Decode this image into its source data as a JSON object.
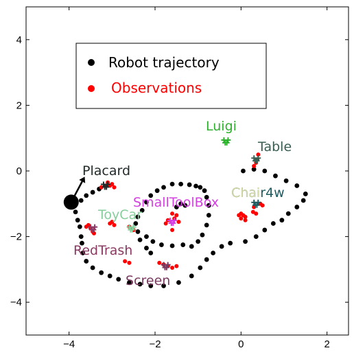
{
  "chart_data": {
    "type": "scatter",
    "title": "",
    "xlabel": "",
    "ylabel": "",
    "xlim": [
      -5,
      2.5
    ],
    "ylim": [
      -5,
      5
    ],
    "grid": false,
    "legend_location": "upper-left",
    "x_ticks": [
      -4,
      -2,
      0,
      2
    ],
    "y_ticks": [
      -4,
      -2,
      0,
      2,
      4
    ],
    "x_tick_labels": [
      "−4",
      "−2",
      "0",
      "2"
    ],
    "y_tick_labels": [
      "−4",
      "−2",
      "0",
      "2",
      "4"
    ],
    "legend": [
      {
        "label": "Robot trajectory",
        "color": "#000000"
      },
      {
        "label": "Observations",
        "color": "#ff0000"
      }
    ],
    "robot_pose": {
      "x": -3.95,
      "y": -0.95,
      "heading_deg": 62,
      "color": "#000000"
    },
    "series": [
      {
        "name": "Robot trajectory",
        "color": "#000000",
        "points": [
          [
            -3.9,
            -1.0
          ],
          [
            -3.85,
            -1.25
          ],
          [
            -3.8,
            -1.5
          ],
          [
            -3.75,
            -1.7
          ],
          [
            -3.72,
            -2.0
          ],
          [
            -3.7,
            -2.2
          ],
          [
            -3.68,
            -2.5
          ],
          [
            -3.6,
            -2.75
          ],
          [
            -3.45,
            -2.95
          ],
          [
            -3.25,
            -3.1
          ],
          [
            -3.05,
            -3.2
          ],
          [
            -2.85,
            -3.3
          ],
          [
            -2.6,
            -3.4
          ],
          [
            -2.35,
            -3.45
          ],
          [
            -2.1,
            -3.5
          ],
          [
            -1.8,
            -3.5
          ],
          [
            -1.45,
            -3.4
          ],
          [
            -1.15,
            -3.2
          ],
          [
            -0.95,
            -2.95
          ],
          [
            -0.8,
            -2.7
          ],
          [
            -0.65,
            -2.5
          ],
          [
            -0.45,
            -2.3
          ],
          [
            -0.25,
            -2.2
          ],
          [
            0.1,
            -2.15
          ],
          [
            0.35,
            -2.0
          ],
          [
            0.55,
            -1.8
          ],
          [
            0.75,
            -1.6
          ],
          [
            0.95,
            -1.5
          ],
          [
            1.1,
            -1.3
          ],
          [
            1.3,
            -1.1
          ],
          [
            1.45,
            -0.9
          ],
          [
            1.5,
            -0.7
          ],
          [
            1.3,
            -0.45
          ],
          [
            1.05,
            -0.3
          ],
          [
            0.8,
            -0.15
          ],
          [
            0.55,
            0.0
          ],
          [
            0.3,
            0.05
          ],
          [
            0.05,
            0.0
          ],
          [
            -3.72,
            -0.9
          ],
          [
            -3.6,
            -0.75
          ],
          [
            -3.45,
            -0.65
          ],
          [
            -3.3,
            -0.55
          ],
          [
            -2.1,
            -2.5
          ],
          [
            -2.2,
            -2.35
          ],
          [
            -2.35,
            -2.1
          ],
          [
            -2.4,
            -1.85
          ],
          [
            -2.45,
            -1.6
          ],
          [
            -2.4,
            -1.4
          ],
          [
            -2.3,
            -1.2
          ],
          [
            -2.2,
            -0.95
          ],
          [
            -2.1,
            -0.75
          ],
          [
            -1.95,
            -0.6
          ],
          [
            -1.8,
            -0.5
          ],
          [
            -1.6,
            -0.4
          ],
          [
            -1.4,
            -0.4
          ],
          [
            -1.2,
            -0.42
          ],
          [
            -1.05,
            -0.46
          ],
          [
            -0.95,
            -0.5
          ],
          [
            -0.85,
            -0.6
          ],
          [
            -0.8,
            -0.8
          ],
          [
            -0.75,
            -1.05
          ],
          [
            -0.75,
            -1.35
          ],
          [
            -0.8,
            -1.65
          ],
          [
            -0.9,
            -1.95
          ],
          [
            -1.0,
            -2.15
          ],
          [
            -1.15,
            -2.3
          ],
          [
            -2.2,
            -2.0
          ],
          [
            -2.05,
            -2.15
          ],
          [
            -1.85,
            -2.25
          ],
          [
            -1.6,
            -2.28
          ],
          [
            -1.35,
            -2.25
          ],
          [
            -1.3,
            -1.05
          ],
          [
            -1.4,
            -1.0
          ],
          [
            -1.5,
            -1.1
          ]
        ]
      },
      {
        "name": "Observations",
        "color": "#ff0000",
        "points": [
          [
            -3.1,
            -0.35
          ],
          [
            -3.15,
            -0.45
          ],
          [
            -3.25,
            -0.5
          ],
          [
            -3.05,
            -0.45
          ],
          [
            -3.0,
            -0.4
          ],
          [
            -2.95,
            -0.5
          ],
          [
            -3.55,
            -1.65
          ],
          [
            -3.5,
            -1.75
          ],
          [
            -3.45,
            -1.85
          ],
          [
            -3.6,
            -1.7
          ],
          [
            -3.42,
            -1.9
          ],
          [
            -2.55,
            -1.75
          ],
          [
            -2.5,
            -1.8
          ],
          [
            -2.6,
            -1.7
          ],
          [
            -3.0,
            -1.55
          ],
          [
            -3.05,
            -1.6
          ],
          [
            -2.95,
            -1.65
          ],
          [
            -2.7,
            -2.75
          ],
          [
            -2.6,
            -2.8
          ],
          [
            -1.9,
            -2.8
          ],
          [
            -1.8,
            -2.85
          ],
          [
            -1.7,
            -2.9
          ],
          [
            -1.6,
            -2.95
          ],
          [
            -1.5,
            -2.9
          ],
          [
            -1.7,
            -1.5
          ],
          [
            -1.75,
            -1.6
          ],
          [
            -1.45,
            -1.55
          ],
          [
            -1.6,
            -1.8
          ],
          [
            -1.6,
            -1.3
          ],
          [
            -1.55,
            -1.45
          ],
          [
            -1.5,
            -1.35
          ],
          [
            0.0,
            -1.3
          ],
          [
            0.05,
            -1.35
          ],
          [
            0.1,
            -1.4
          ],
          [
            0.0,
            -1.45
          ],
          [
            0.1,
            -1.5
          ],
          [
            -0.05,
            -1.35
          ],
          [
            0.3,
            -1.1
          ],
          [
            0.28,
            -1.25
          ],
          [
            0.35,
            -1.3
          ],
          [
            0.4,
            0.5
          ],
          [
            0.38,
            0.35
          ],
          [
            0.35,
            0.25
          ],
          [
            0.3,
            0.15
          ],
          [
            0.45,
            -1.0
          ],
          [
            0.5,
            -1.05
          ]
        ]
      }
    ],
    "objects": [
      {
        "label": "Luigi",
        "color": "#2fb12f",
        "x": -0.35,
        "y": 0.9
      },
      {
        "label": "Table",
        "color": "#3a5e52",
        "x": 0.35,
        "y": 0.35
      },
      {
        "label": "Placard",
        "color": "#222a2a",
        "x": -3.15,
        "y": -0.45
      },
      {
        "label": "Chair4w",
        "color": "#1f5a5f",
        "x": 0.35,
        "y": -1.0
      },
      {
        "label": "ToyCar",
        "color": "#86cf9c",
        "x": -2.55,
        "y": -1.75
      },
      {
        "label": "SmallToolBox",
        "color": "#d43fe0",
        "x": -1.6,
        "y": -1.55
      },
      {
        "label": "RedTrash",
        "color": "#8a3a62",
        "x": -3.45,
        "y": -1.75
      },
      {
        "label": "Screen",
        "color": "#7a3a60",
        "x": -1.75,
        "y": -2.9
      }
    ],
    "chair_label_overlay": {
      "label": "Chai",
      "color": "#d2d7a6"
    }
  }
}
